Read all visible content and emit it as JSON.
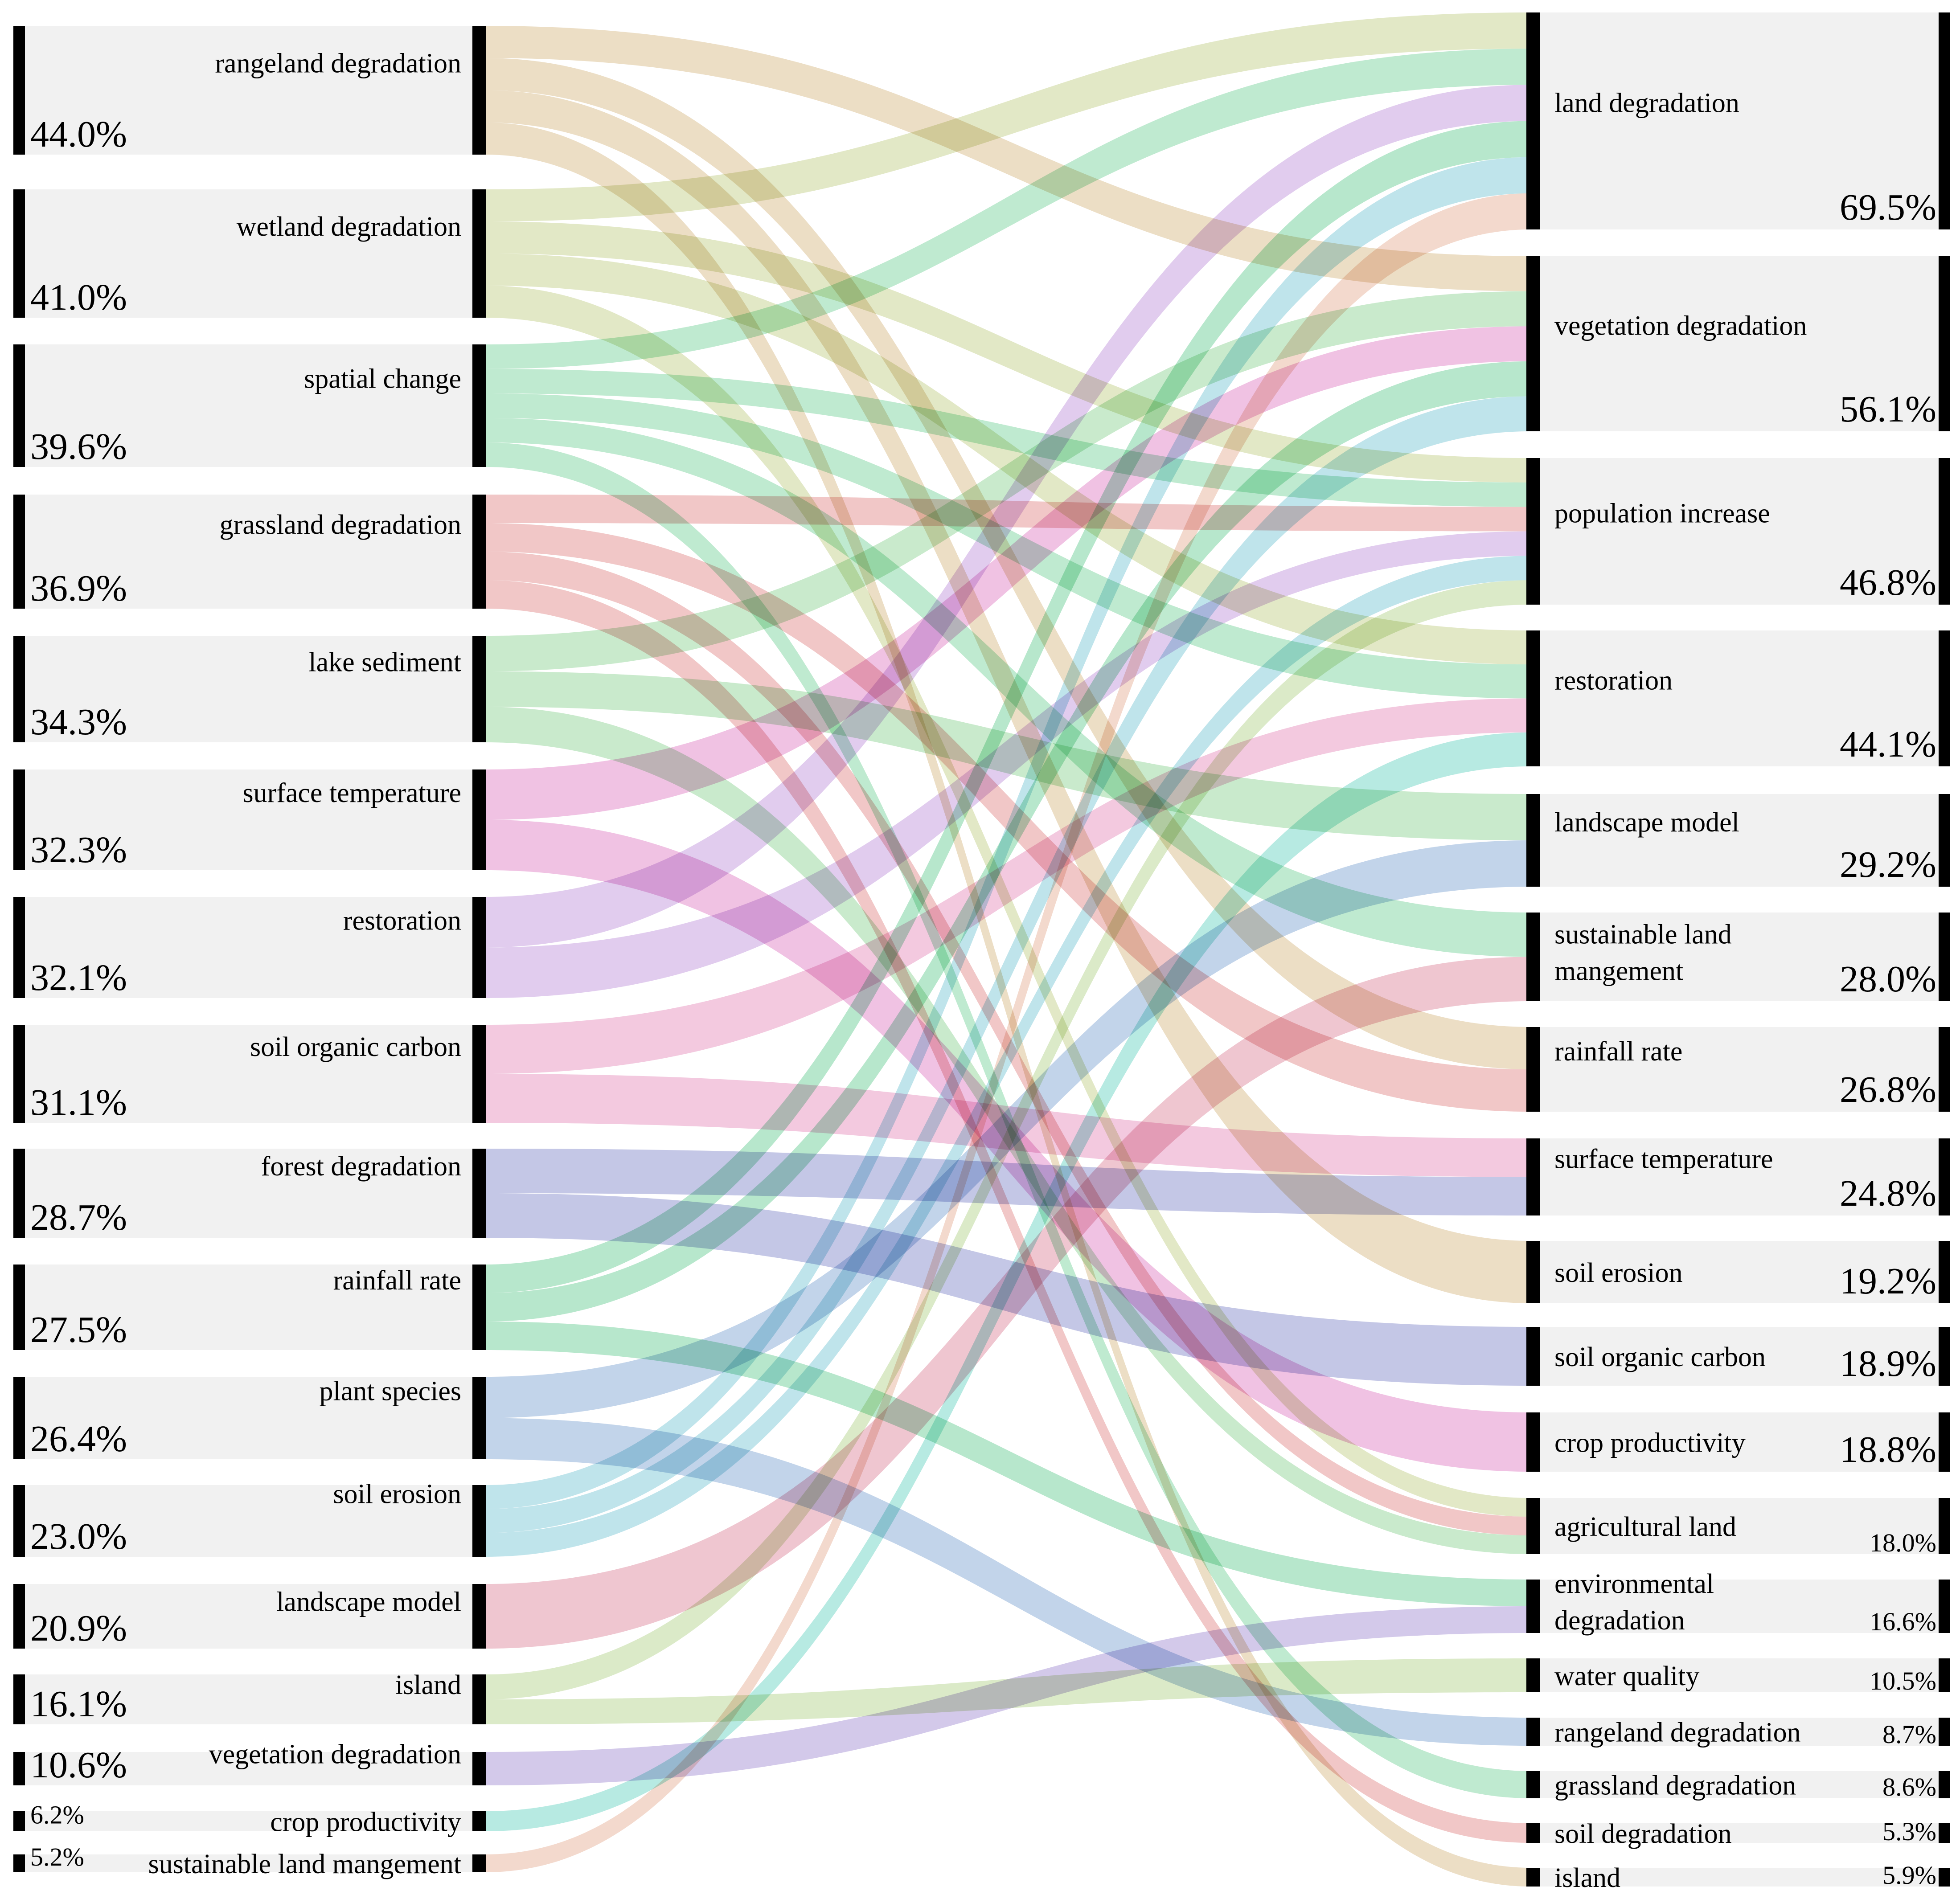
{
  "left_nodes": [
    {
      "label": "rangeland degradation",
      "percent": "44.0%",
      "color": "#d9bd8c"
    },
    {
      "label": "wetland degradation",
      "percent": "41.0%",
      "color": "#c5d28d"
    },
    {
      "label": "spatial change",
      "percent": "39.6%",
      "color": "#7fd6a2"
    },
    {
      "label": "grassland degradation",
      "percent": "36.9%",
      "color": "#e48f90"
    },
    {
      "label": "lake sediment",
      "percent": "34.3%",
      "color": "#93d69a"
    },
    {
      "label": "surface temperature",
      "percent": "32.3%",
      "color": "#e186c7"
    },
    {
      "label": "restoration",
      "percent": "32.1%",
      "color": "#c39add"
    },
    {
      "label": "soil organic carbon",
      "percent": "31.1%",
      "color": "#e893bf"
    },
    {
      "label": "forest degradation",
      "percent": "28.7%",
      "color": "#8a8fcd"
    },
    {
      "label": "rainfall rate",
      "percent": "27.5%",
      "color": "#6fd09a"
    },
    {
      "label": "plant species",
      "percent": "26.4%",
      "color": "#86a9d6"
    },
    {
      "label": "soil erosion",
      "percent": "23.0%",
      "color": "#80c9d8"
    },
    {
      "label": "landscape model",
      "percent": "20.9%",
      "color": "#e08ea2"
    },
    {
      "label": "island",
      "percent": "16.1%",
      "color": "#b7d691"
    },
    {
      "label": "vegetation degradation",
      "percent": "10.6%",
      "color": "#a794d5"
    },
    {
      "label": "crop productivity",
      "percent": "6.2%",
      "color": "#6fd6c6"
    },
    {
      "label": "sustainable land mangement",
      "percent": "5.2%",
      "color": "#e8b49b"
    }
  ],
  "right_nodes": [
    {
      "label": "land degradation",
      "percent": "69.5%"
    },
    {
      "label": "vegetation degradation",
      "percent": "56.1%"
    },
    {
      "label": "population increase",
      "percent": "46.8%"
    },
    {
      "label": "restoration",
      "percent": "44.1%"
    },
    {
      "label": "landscape model",
      "percent": "29.2%"
    },
    {
      "label": "sustainable land mangement",
      "lines": [
        "sustainable land",
        "mangement"
      ],
      "percent": "28.0%"
    },
    {
      "label": "rainfall rate",
      "percent": "26.8%"
    },
    {
      "label": "surface temperature",
      "percent": "24.8%"
    },
    {
      "label": "soil erosion",
      "percent": "19.2%"
    },
    {
      "label": "soil organic carbon",
      "percent": "18.9%"
    },
    {
      "label": "crop productivity",
      "percent": "18.8%"
    },
    {
      "label": "agricultural land",
      "percent": "18.0%"
    },
    {
      "label": "environmental degradation",
      "lines": [
        "environmental",
        "degradation"
      ],
      "percent": "16.6%"
    },
    {
      "label": "water quality",
      "percent": "10.5%"
    },
    {
      "label": "rangeland degradation",
      "percent": "8.7%"
    },
    {
      "label": "grassland degradation",
      "percent": "8.6%"
    },
    {
      "label": "soil degradation",
      "percent": "5.3%"
    },
    {
      "label": "island",
      "percent": "5.9%"
    }
  ],
  "links": [
    {
      "source": "rangeland degradation",
      "target": "vegetation degradation"
    },
    {
      "source": "rangeland degradation",
      "target": "rainfall rate"
    },
    {
      "source": "rangeland degradation",
      "target": "soil erosion"
    },
    {
      "source": "rangeland degradation",
      "target": "island"
    },
    {
      "source": "wetland degradation",
      "target": "land degradation"
    },
    {
      "source": "wetland degradation",
      "target": "population increase"
    },
    {
      "source": "wetland degradation",
      "target": "restoration"
    },
    {
      "source": "wetland degradation",
      "target": "agricultural land"
    },
    {
      "source": "spatial change",
      "target": "land degradation"
    },
    {
      "source": "spatial change",
      "target": "population increase"
    },
    {
      "source": "spatial change",
      "target": "restoration"
    },
    {
      "source": "spatial change",
      "target": "sustainable land mangement"
    },
    {
      "source": "spatial change",
      "target": "grassland degradation"
    },
    {
      "source": "grassland degradation",
      "target": "population increase"
    },
    {
      "source": "grassland degradation",
      "target": "rainfall rate"
    },
    {
      "source": "grassland degradation",
      "target": "agricultural land"
    },
    {
      "source": "grassland degradation",
      "target": "soil degradation"
    },
    {
      "source": "lake sediment",
      "target": "vegetation degradation"
    },
    {
      "source": "lake sediment",
      "target": "landscape model"
    },
    {
      "source": "lake sediment",
      "target": "agricultural land"
    },
    {
      "source": "surface temperature",
      "target": "vegetation degradation"
    },
    {
      "source": "surface temperature",
      "target": "crop productivity"
    },
    {
      "source": "restoration",
      "target": "land degradation"
    },
    {
      "source": "restoration",
      "target": "population increase"
    },
    {
      "source": "soil organic carbon",
      "target": "restoration"
    },
    {
      "source": "soil organic carbon",
      "target": "surface temperature"
    },
    {
      "source": "forest degradation",
      "target": "surface temperature"
    },
    {
      "source": "forest degradation",
      "target": "soil organic carbon"
    },
    {
      "source": "rainfall rate",
      "target": "land degradation"
    },
    {
      "source": "rainfall rate",
      "target": "vegetation degradation"
    },
    {
      "source": "rainfall rate",
      "target": "environmental degradation"
    },
    {
      "source": "plant species",
      "target": "landscape model"
    },
    {
      "source": "plant species",
      "target": "rangeland degradation"
    },
    {
      "source": "soil erosion",
      "target": "land degradation"
    },
    {
      "source": "soil erosion",
      "target": "vegetation degradation"
    },
    {
      "source": "soil erosion",
      "target": "population increase"
    },
    {
      "source": "landscape model",
      "target": "sustainable land mangement"
    },
    {
      "source": "island",
      "target": "population increase"
    },
    {
      "source": "island",
      "target": "water quality"
    },
    {
      "source": "vegetation degradation",
      "target": "environmental degradation"
    },
    {
      "source": "crop productivity",
      "target": "restoration"
    },
    {
      "source": "sustainable land mangement",
      "target": "land degradation"
    }
  ]
}
